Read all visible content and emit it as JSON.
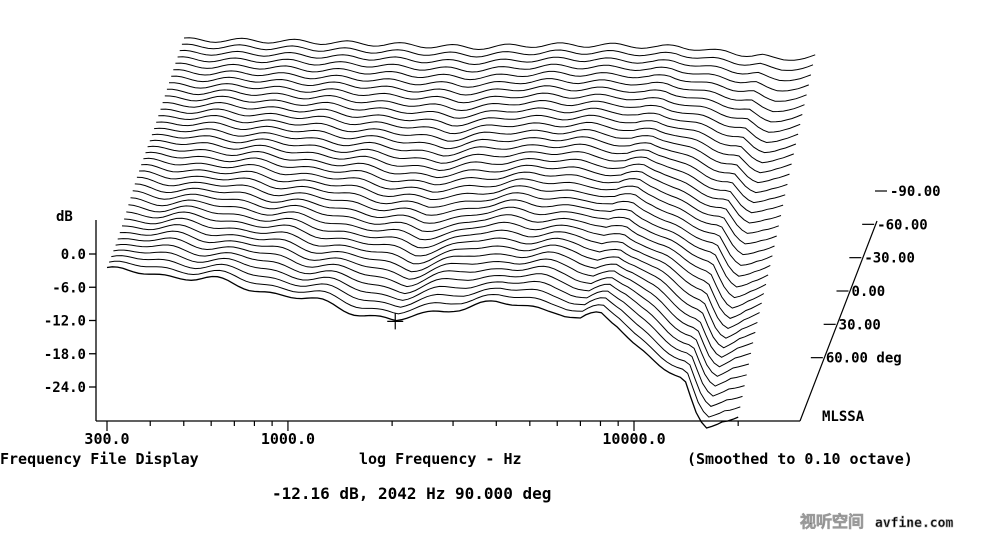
{
  "chart_data": {
    "type": "line",
    "subtype": "waterfall",
    "title": "",
    "ylabel": "dB",
    "xlabel": "log Frequency - Hz",
    "footer_left": "Frequency File Display",
    "footer_right": "(Smoothed to 0.10 octave)",
    "cursor_readout": "-12.16 dB, 2042 Hz  90.000 deg",
    "brand": "MLSSA",
    "x_scale": "log",
    "xlim": [
      300,
      27000
    ],
    "ylim": [
      -30,
      6
    ],
    "x_ticks": [
      {
        "value": 300,
        "label": "300.0"
      },
      {
        "value": 1000,
        "label": "1000.0"
      },
      {
        "value": 10000,
        "label": "10000.0"
      }
    ],
    "y_ticks": [
      {
        "value": 0,
        "label": "0.0"
      },
      {
        "value": -6,
        "label": "-6.0"
      },
      {
        "value": -12,
        "label": "-12.0"
      },
      {
        "value": -18,
        "label": "-18.0"
      },
      {
        "value": -24,
        "label": "-24.0"
      }
    ],
    "z_ticks": [
      {
        "value": -90,
        "label": "-90.00"
      },
      {
        "value": -60,
        "label": "-60.00"
      },
      {
        "value": -30,
        "label": "-30.00"
      },
      {
        "value": 0,
        "label": "0.00"
      },
      {
        "value": 30,
        "label": "30.00"
      },
      {
        "value": 60,
        "label": "60.00 deg"
      }
    ],
    "z_range_deg": [
      60,
      -90
    ],
    "z_step_deg": 5,
    "cursor": {
      "x": 2042,
      "y": -12.16,
      "z": 90
    },
    "series": [
      {
        "angle_deg": 90,
        "x": [
          300,
          400,
          500,
          700,
          1000,
          1500,
          2042,
          2500,
          3000,
          4000,
          5000,
          6000,
          7000,
          8000,
          9000,
          10000,
          12000,
          14000,
          15000,
          16000,
          18000,
          20000
        ],
        "y": [
          -3,
          -3.5,
          -4,
          -5.5,
          -7.5,
          -10,
          -12.16,
          -11,
          -9.5,
          -9,
          -9.5,
          -10,
          -12,
          -11,
          -13,
          -16,
          -20,
          -21,
          -26,
          -28,
          -24,
          -22
        ]
      }
    ]
  },
  "watermark": {
    "text": "视听空间",
    "url": "avfine.com"
  }
}
